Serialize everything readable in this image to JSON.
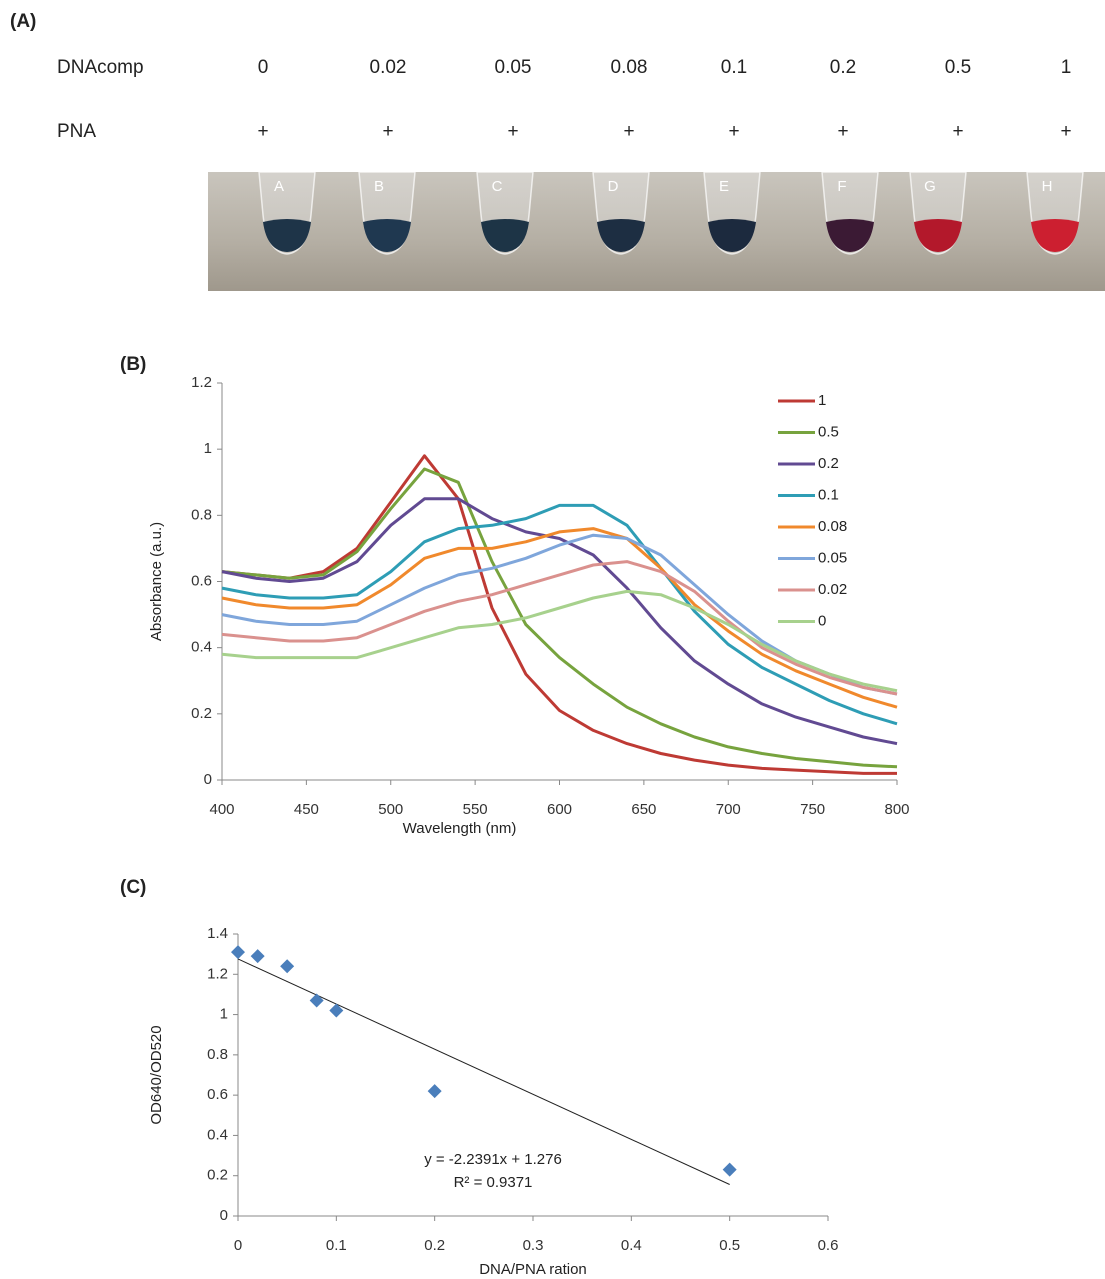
{
  "panel_a": {
    "panel_label": "(A)",
    "row1_label": "DNAcomp",
    "row1_values": [
      "0",
      "0.02",
      "0.05",
      "0.08",
      "0.1",
      "0.2",
      "0.5",
      "1"
    ],
    "row2_label": "PNA",
    "row2_values": [
      "+",
      "+",
      "+",
      "+",
      "+",
      "+",
      "+",
      "+"
    ],
    "tubes": [
      "A",
      "B",
      "C",
      "D",
      "E",
      "F",
      "G",
      "H"
    ]
  },
  "chart_data": [
    {
      "type": "line",
      "panel_label": "(B)",
      "x_label": "Wavelength (nm)",
      "y_label": "Absorbance (a.u.)",
      "x": [
        400,
        420,
        440,
        460,
        480,
        500,
        520,
        540,
        560,
        580,
        600,
        620,
        640,
        660,
        680,
        700,
        720,
        740,
        760,
        780,
        800
      ],
      "xlim": [
        400,
        800
      ],
      "xticks": [
        400,
        450,
        500,
        550,
        600,
        650,
        700,
        750,
        800
      ],
      "ylim": [
        0,
        1.2
      ],
      "yticks": [
        0,
        0.2,
        0.4,
        0.6,
        0.8,
        1,
        1.2
      ],
      "grid": false,
      "legend": "right",
      "series": [
        {
          "name": "1",
          "color": "#be3a34",
          "values": [
            0.63,
            0.62,
            0.61,
            0.63,
            0.7,
            0.84,
            0.98,
            0.85,
            0.52,
            0.32,
            0.21,
            0.15,
            0.11,
            0.08,
            0.06,
            0.045,
            0.035,
            0.03,
            0.025,
            0.02,
            0.02
          ]
        },
        {
          "name": "0.5",
          "color": "#77a33e",
          "values": [
            0.63,
            0.62,
            0.61,
            0.62,
            0.69,
            0.82,
            0.94,
            0.9,
            0.66,
            0.47,
            0.37,
            0.29,
            0.22,
            0.17,
            0.13,
            0.1,
            0.08,
            0.065,
            0.055,
            0.045,
            0.04
          ]
        },
        {
          "name": "0.2",
          "color": "#614a92",
          "values": [
            0.63,
            0.61,
            0.6,
            0.61,
            0.66,
            0.77,
            0.85,
            0.85,
            0.79,
            0.75,
            0.73,
            0.68,
            0.58,
            0.46,
            0.36,
            0.29,
            0.23,
            0.19,
            0.16,
            0.13,
            0.11
          ]
        },
        {
          "name": "0.1",
          "color": "#2e9db5",
          "values": [
            0.58,
            0.56,
            0.55,
            0.55,
            0.56,
            0.63,
            0.72,
            0.76,
            0.77,
            0.79,
            0.83,
            0.83,
            0.77,
            0.64,
            0.51,
            0.41,
            0.34,
            0.29,
            0.24,
            0.2,
            0.17
          ]
        },
        {
          "name": "0.08",
          "color": "#f0892c",
          "values": [
            0.55,
            0.53,
            0.52,
            0.52,
            0.53,
            0.59,
            0.67,
            0.7,
            0.7,
            0.72,
            0.75,
            0.76,
            0.73,
            0.64,
            0.53,
            0.45,
            0.38,
            0.33,
            0.29,
            0.25,
            0.22
          ]
        },
        {
          "name": "0.05",
          "color": "#7fa6db",
          "values": [
            0.5,
            0.48,
            0.47,
            0.47,
            0.48,
            0.53,
            0.58,
            0.62,
            0.64,
            0.67,
            0.71,
            0.74,
            0.73,
            0.68,
            0.59,
            0.5,
            0.42,
            0.36,
            0.32,
            0.28,
            0.26
          ]
        },
        {
          "name": "0.02",
          "color": "#da918e",
          "values": [
            0.44,
            0.43,
            0.42,
            0.42,
            0.43,
            0.47,
            0.51,
            0.54,
            0.56,
            0.59,
            0.62,
            0.65,
            0.66,
            0.63,
            0.57,
            0.48,
            0.4,
            0.35,
            0.31,
            0.28,
            0.26
          ]
        },
        {
          "name": "0",
          "color": "#a7d18d",
          "values": [
            0.38,
            0.37,
            0.37,
            0.37,
            0.37,
            0.4,
            0.43,
            0.46,
            0.47,
            0.49,
            0.52,
            0.55,
            0.57,
            0.56,
            0.52,
            0.47,
            0.41,
            0.36,
            0.32,
            0.29,
            0.27
          ]
        }
      ]
    },
    {
      "type": "scatter",
      "panel_label": "(C)",
      "x_label": "DNA/PNA ration",
      "y_label": "OD640/OD520",
      "x": [
        0,
        0.02,
        0.05,
        0.08,
        0.1,
        0.2,
        0.5
      ],
      "values": [
        1.31,
        1.29,
        1.24,
        1.07,
        1.02,
        0.62,
        0.23
      ],
      "color": "#4a7ebb",
      "xlim": [
        0,
        0.6
      ],
      "xticks": [
        0,
        0.1,
        0.2,
        0.3,
        0.4,
        0.5,
        0.6
      ],
      "ylim": [
        0,
        1.4
      ],
      "yticks": [
        0,
        0.2,
        0.4,
        0.6,
        0.8,
        1,
        1.2,
        1.4
      ],
      "grid": false,
      "trendline": {
        "slope": -2.2391,
        "intercept": 1.276,
        "equation": "y = -2.2391x + 1.276",
        "r2_label": "R² = 0.9371"
      }
    }
  ]
}
